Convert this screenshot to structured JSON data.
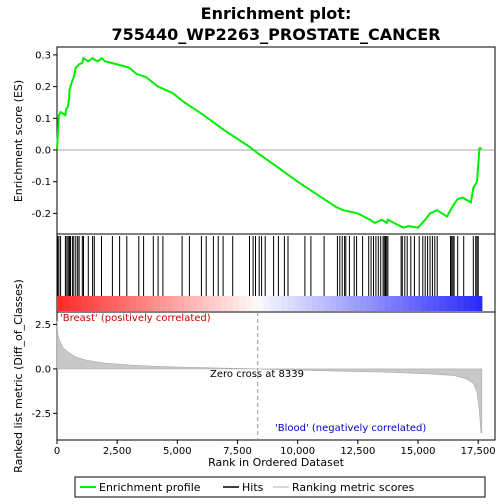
{
  "chart_data": {
    "type": "line",
    "title": "Enrichment plot:\n755440_WP2263_PROSTATE_CANCER",
    "panels": {
      "enrichment": {
        "ylabel": "Enrichment score (ES)",
        "ylim": [
          -0.265,
          0.325
        ],
        "yticks": [
          "0.3",
          "0.2",
          "0.1",
          "0.0",
          "-0.1",
          "-0.2"
        ],
        "ytick_values": [
          0.3,
          0.2,
          0.1,
          0.0,
          -0.1,
          -0.2
        ],
        "series_name": "Enrichment profile",
        "color": "#00ee00",
        "points": [
          [
            0,
            0.0
          ],
          [
            80,
            0.11
          ],
          [
            150,
            0.12
          ],
          [
            350,
            0.11
          ],
          [
            380,
            0.13
          ],
          [
            450,
            0.135
          ],
          [
            500,
            0.16
          ],
          [
            520,
            0.19
          ],
          [
            560,
            0.2
          ],
          [
            640,
            0.22
          ],
          [
            700,
            0.23
          ],
          [
            780,
            0.26
          ],
          [
            860,
            0.265
          ],
          [
            920,
            0.27
          ],
          [
            1050,
            0.275
          ],
          [
            1100,
            0.29
          ],
          [
            1300,
            0.28
          ],
          [
            1480,
            0.29
          ],
          [
            1550,
            0.285
          ],
          [
            1700,
            0.28
          ],
          [
            1850,
            0.29
          ],
          [
            2000,
            0.28
          ],
          [
            2500,
            0.27
          ],
          [
            3000,
            0.26
          ],
          [
            3300,
            0.24
          ],
          [
            3700,
            0.23
          ],
          [
            4200,
            0.2
          ],
          [
            4800,
            0.18
          ],
          [
            5300,
            0.15
          ],
          [
            6000,
            0.115
          ],
          [
            7000,
            0.06
          ],
          [
            8000,
            0.01
          ],
          [
            8339,
            -0.01
          ],
          [
            9000,
            -0.045
          ],
          [
            10000,
            -0.1
          ],
          [
            11000,
            -0.15
          ],
          [
            11600,
            -0.18
          ],
          [
            11900,
            -0.19
          ],
          [
            12500,
            -0.2
          ],
          [
            13000,
            -0.22
          ],
          [
            13200,
            -0.23
          ],
          [
            13500,
            -0.22
          ],
          [
            13700,
            -0.23
          ],
          [
            13750,
            -0.22
          ],
          [
            14000,
            -0.23
          ],
          [
            14400,
            -0.245
          ],
          [
            14600,
            -0.24
          ],
          [
            15000,
            -0.245
          ],
          [
            15300,
            -0.22
          ],
          [
            15500,
            -0.2
          ],
          [
            15800,
            -0.19
          ],
          [
            16000,
            -0.2
          ],
          [
            16200,
            -0.21
          ],
          [
            16350,
            -0.19
          ],
          [
            16500,
            -0.17
          ],
          [
            16650,
            -0.155
          ],
          [
            16850,
            -0.15
          ],
          [
            17200,
            -0.165
          ],
          [
            17300,
            -0.12
          ],
          [
            17450,
            -0.1
          ],
          [
            17500,
            -0.05
          ],
          [
            17550,
            0.005
          ],
          [
            17650,
            0.005
          ]
        ]
      },
      "hits": {
        "series_name": "Hits",
        "color": "#000000",
        "positions": [
          30,
          80,
          150,
          350,
          380,
          450,
          500,
          520,
          560,
          640,
          700,
          780,
          860,
          920,
          1050,
          1100,
          1300,
          1480,
          1550,
          1850,
          2300,
          2600,
          2900,
          3400,
          3600,
          4000,
          4200,
          4400,
          5200,
          5500,
          6000,
          6200,
          6500,
          6700,
          6900,
          7300,
          8000,
          8150,
          8250,
          8400,
          8500,
          8650,
          9000,
          9200,
          9450,
          9600,
          10300,
          10550,
          11100,
          11650,
          11750,
          11850,
          11950,
          12000,
          12150,
          12350,
          12450,
          12700,
          12950,
          13050,
          13150,
          13250,
          13350,
          13450,
          13550,
          13600,
          13650,
          13700,
          13750,
          14300,
          14350,
          14450,
          14550,
          14700,
          14850,
          15050,
          15200,
          15300,
          15400,
          15500,
          15600,
          15700,
          15800,
          16350,
          16400,
          16450,
          16500,
          16650,
          16900,
          17300,
          17400,
          17450,
          17500
        ]
      },
      "ranking": {
        "ylabel": "Ranked list metric (Diff_of_Classes)",
        "xlabel": "Rank in Ordered Dataset",
        "ylim": [
          -4.0,
          3.2
        ],
        "yticks": [
          "2.5",
          "0.0",
          "-2.5"
        ],
        "ytick_values": [
          2.5,
          0.0,
          -2.5
        ],
        "xlim": [
          0,
          18200
        ],
        "xticks": [
          "0",
          "2,500",
          "5,000",
          "7,500",
          "10,000",
          "12,500",
          "15,000",
          "17,500"
        ],
        "xtick_values": [
          0,
          2500,
          5000,
          7500,
          10000,
          12500,
          15000,
          17500
        ],
        "series_name": "Ranking metric scores",
        "color": "#c8c8c8",
        "points": [
          [
            0,
            2.7
          ],
          [
            30,
            2.0
          ],
          [
            100,
            1.6
          ],
          [
            250,
            1.2
          ],
          [
            500,
            0.9
          ],
          [
            800,
            0.65
          ],
          [
            1200,
            0.5
          ],
          [
            2000,
            0.32
          ],
          [
            3000,
            0.22
          ],
          [
            4000,
            0.15
          ],
          [
            5000,
            0.1
          ],
          [
            6000,
            0.07
          ],
          [
            7000,
            0.04
          ],
          [
            8339,
            0.0
          ],
          [
            9500,
            -0.05
          ],
          [
            11000,
            -0.1
          ],
          [
            12500,
            -0.15
          ],
          [
            14000,
            -0.2
          ],
          [
            15500,
            -0.28
          ],
          [
            16500,
            -0.38
          ],
          [
            17000,
            -0.55
          ],
          [
            17300,
            -0.8
          ],
          [
            17450,
            -1.3
          ],
          [
            17550,
            -2.4
          ],
          [
            17620,
            -3.6
          ],
          [
            17650,
            -3.6
          ]
        ],
        "zero_cross_label": "Zero cross at 8339",
        "zero_cross": 8339,
        "pos_label": "'Breast' (positively correlated)",
        "neg_label": "'Blood' (negatively correlated)"
      }
    },
    "legend": {
      "placement": "bottom",
      "items": [
        {
          "label": "Enrichment profile",
          "color": "#00ee00"
        },
        {
          "label": "Hits",
          "color": "#000000"
        },
        {
          "label": "Ranking metric scores",
          "color": "#c8c8c8"
        }
      ]
    },
    "x_max": 17650
  }
}
